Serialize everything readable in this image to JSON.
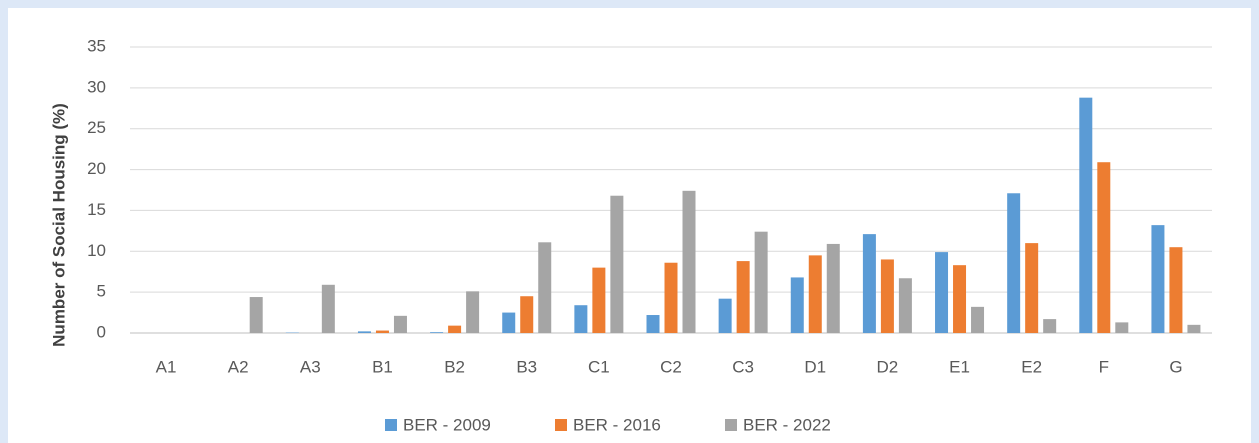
{
  "chart_data": {
    "type": "bar",
    "y_label": "Number of Social Housing (%)",
    "categories": [
      "A1",
      "A2",
      "A3",
      "B1",
      "B2",
      "B3",
      "C1",
      "C2",
      "C3",
      "D1",
      "D2",
      "E1",
      "E2",
      "F",
      "G"
    ],
    "series": [
      {
        "name": "BER - 2009",
        "color": "#5b9bd5",
        "values": [
          0,
          0,
          0.05,
          0.2,
          0.1,
          2.5,
          3.4,
          2.2,
          4.2,
          6.8,
          12.1,
          9.9,
          17.1,
          28.8,
          13.2
        ]
      },
      {
        "name": "BER - 2016",
        "color": "#ed7d31",
        "values": [
          0,
          0,
          0,
          0.3,
          0.9,
          4.5,
          8.0,
          8.6,
          8.8,
          9.5,
          9.0,
          8.3,
          11.0,
          20.9,
          10.5
        ]
      },
      {
        "name": "BER - 2022",
        "color": "#a5a5a5",
        "values": [
          0,
          4.4,
          5.9,
          2.1,
          5.1,
          11.1,
          16.8,
          17.4,
          12.4,
          10.9,
          6.7,
          3.2,
          1.7,
          1.3,
          1.0
        ]
      }
    ],
    "ylim": [
      0,
      35
    ],
    "yticks": [
      0,
      5,
      10,
      15,
      20,
      25,
      30,
      35
    ],
    "grid": true,
    "legend": "bottom"
  }
}
